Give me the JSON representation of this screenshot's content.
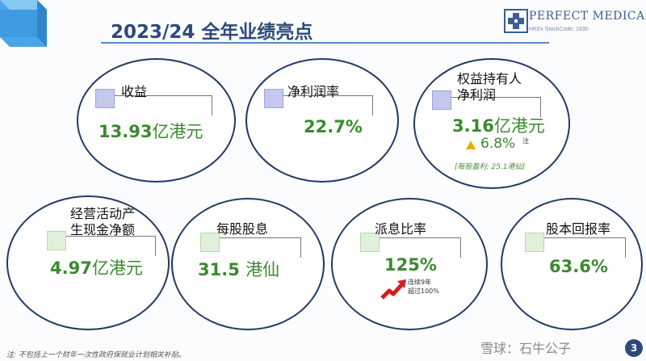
{
  "slide": {
    "title": "2023/24 全年业绩亮点",
    "logo": {
      "name": "PERFECT MEDICAL",
      "subtitle": "HKEx StockCode: 1830"
    },
    "footnote": "注: 不包括上一个财年一次性政府保就业计划相关补贴。",
    "watermark": "雪球：石牛公子",
    "page_number": "3"
  },
  "cards": {
    "revenue": {
      "label": "收益",
      "value": "13.93",
      "unit": "亿港元"
    },
    "net_margin": {
      "label": "净利润率",
      "value": "22.7%"
    },
    "equity_profit": {
      "label_line1": "权益持有人",
      "label_line2": "净利润",
      "value": "3.16",
      "unit": "亿港元",
      "change": "6.8%",
      "change_note": "注",
      "eps": "[每股盈利: 25.1港仙]"
    },
    "operating_cash": {
      "label_line1": "经营活动产",
      "label_line2": "生现金净额",
      "value": "4.97",
      "unit": "亿港元"
    },
    "dps": {
      "label": "每股股息",
      "value": "31.5",
      "unit": "港仙"
    },
    "payout": {
      "label": "派息比率",
      "value": "125%",
      "note_line1": "连续9年",
      "note_line2": "超过100%"
    },
    "shareholder_return": {
      "label": "股本回报率",
      "value": "63.6%"
    }
  }
}
